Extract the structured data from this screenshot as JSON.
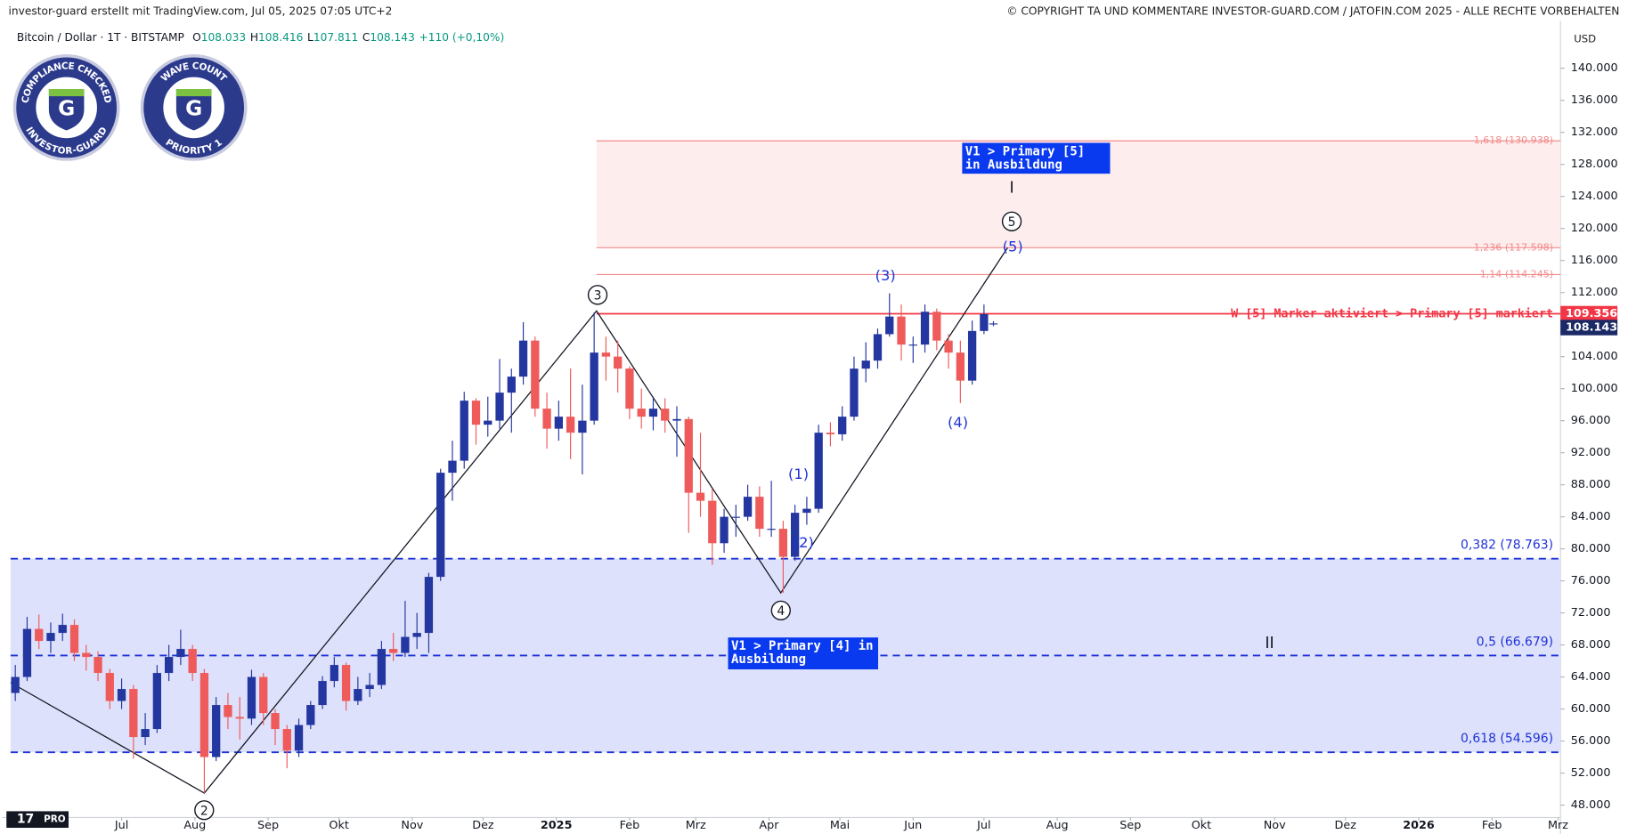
{
  "header": {
    "left": "investor-guard erstellt mit TradingView.com, Jul 05, 2025 07:05 UTC+2",
    "right": "© COPYRIGHT TA UND KOMMENTARE INVESTOR-GUARD.COM / JATOFIN.COM 2025 - ALLE RECHTE VORBEHALTEN"
  },
  "badges": [
    {
      "top": "COMPLIANCE CHECKED",
      "bottom": "INVESTOR-GUARD"
    },
    {
      "top": "WAVE COUNT",
      "bottom": "PRIORITY 1"
    }
  ],
  "logo": "PRO",
  "chart_data": {
    "type": "candlestick",
    "symbol": "Bitcoin / Dollar · 1T · BITSTAMP",
    "ohlc_header": [
      {
        "key": "O",
        "label": "108.033"
      },
      {
        "key": "H",
        "label": "108.416"
      },
      {
        "key": "L",
        "label": "107.811"
      },
      {
        "key": "C",
        "label": "108.143"
      }
    ],
    "change": "+110 (+0,10%)",
    "currency": "USD",
    "x": [
      -45,
      -40,
      -35,
      -30,
      -25,
      -20,
      -15,
      -10,
      -5,
      0,
      5,
      10,
      15,
      20,
      25,
      30,
      35,
      40,
      45,
      50,
      55,
      60,
      65,
      70,
      75,
      80,
      85,
      90,
      95,
      100,
      105,
      110,
      115,
      120,
      125,
      130,
      135,
      140,
      145,
      150,
      155,
      160,
      165,
      170,
      175,
      180,
      185,
      190,
      195,
      200,
      205,
      210,
      215,
      220,
      225,
      230,
      235,
      240,
      245,
      250,
      255,
      260,
      265,
      270,
      275,
      280,
      285,
      290,
      295,
      300,
      305,
      310,
      315,
      320,
      325,
      330,
      335,
      340,
      345,
      350,
      355,
      360,
      365,
      369
    ],
    "open": [
      62000,
      64000,
      70000,
      68500,
      69500,
      70500,
      67000,
      66500,
      64500,
      61000,
      62500,
      56500,
      57500,
      64500,
      66500,
      67500,
      64500,
      54000,
      60500,
      59000,
      58800,
      64000,
      59500,
      57500,
      54800,
      58000,
      60500,
      63500,
      65500,
      61000,
      62500,
      63000,
      67500,
      67000,
      69000,
      69500,
      76500,
      89500,
      91000,
      98500,
      95500,
      96000,
      99500,
      101500,
      106000,
      97500,
      95000,
      96500,
      94500,
      96000,
      104500,
      104000,
      102500,
      97500,
      96500,
      97500,
      96000,
      96200,
      87000,
      86000,
      80700,
      84000,
      84000,
      86500,
      82500,
      82500,
      79000,
      84500,
      85000,
      94500,
      94300,
      96500,
      102500,
      103500,
      106800,
      109000,
      105500,
      105500,
      109600,
      106000,
      104500,
      101000,
      107200,
      108033
    ],
    "high": [
      65500,
      71500,
      71800,
      70800,
      71900,
      71200,
      68000,
      67200,
      65000,
      63800,
      63000,
      59500,
      65500,
      68000,
      69900,
      68000,
      65000,
      61500,
      62000,
      61500,
      64900,
      64500,
      60000,
      58000,
      58800,
      61000,
      64100,
      66500,
      65800,
      64000,
      64500,
      68500,
      69500,
      73500,
      72000,
      77000,
      90000,
      93500,
      99600,
      98800,
      99000,
      103700,
      102500,
      108300,
      106500,
      99500,
      98500,
      102500,
      100500,
      109500,
      106500,
      106000,
      102800,
      100000,
      99000,
      98800,
      97800,
      96500,
      94500,
      87500,
      85000,
      85500,
      88000,
      87800,
      88500,
      83500,
      85500,
      86500,
      95500,
      95800,
      97800,
      104000,
      105800,
      107500,
      111900,
      110500,
      106500,
      110500,
      110000,
      106800,
      106000,
      108500,
      110500,
      108416
    ],
    "low": [
      61000,
      63500,
      67500,
      67000,
      68500,
      66000,
      64800,
      63500,
      60000,
      60000,
      53800,
      55500,
      57000,
      63500,
      65500,
      63500,
      49500,
      53500,
      57500,
      56200,
      58000,
      58000,
      55500,
      52600,
      54000,
      57500,
      60000,
      62700,
      59800,
      60500,
      61500,
      62500,
      66000,
      66500,
      67500,
      67000,
      76000,
      86000,
      90000,
      93000,
      94000,
      95000,
      94500,
      100500,
      96500,
      92500,
      93500,
      91200,
      89300,
      95500,
      101000,
      99500,
      96200,
      95000,
      94800,
      94500,
      91500,
      82000,
      84000,
      78000,
      79500,
      81500,
      83500,
      81500,
      81500,
      74500,
      78500,
      83000,
      84500,
      92800,
      93500,
      96000,
      100800,
      102500,
      106500,
      103500,
      103200,
      104500,
      104800,
      102500,
      98200,
      100500,
      106800,
      107811
    ],
    "close": [
      64000,
      70000,
      68500,
      69500,
      70500,
      67000,
      66500,
      64500,
      61000,
      62500,
      56500,
      57500,
      64500,
      66500,
      67500,
      64500,
      54000,
      60500,
      59000,
      58800,
      64000,
      59500,
      57500,
      54800,
      58000,
      60500,
      63500,
      65500,
      61000,
      62500,
      63000,
      67500,
      67000,
      69000,
      69500,
      76500,
      89500,
      91000,
      98500,
      95500,
      96000,
      99500,
      101500,
      106000,
      97500,
      95000,
      96500,
      94500,
      96000,
      104500,
      104000,
      102500,
      97500,
      96500,
      97500,
      96000,
      96200,
      87000,
      86000,
      80700,
      84000,
      84000,
      86500,
      82500,
      82500,
      79000,
      84500,
      85000,
      94500,
      94300,
      96500,
      102500,
      103500,
      106800,
      109000,
      105500,
      105500,
      109600,
      106000,
      104500,
      101000,
      107200,
      109300,
      108143
    ],
    "up_color": "#2436a0",
    "down_color": "#ef5a5a",
    "last_label": "108.143",
    "last_color": "#1b2a66",
    "xlim": [
      -47,
      609
    ],
    "xticks": [
      {
        "value": 0,
        "label": "Jul"
      },
      {
        "value": 31,
        "label": "Aug"
      },
      {
        "value": 62,
        "label": "Sep"
      },
      {
        "value": 92,
        "label": "Okt"
      },
      {
        "value": 123,
        "label": "Nov"
      },
      {
        "value": 153,
        "label": "Dez"
      },
      {
        "value": 184,
        "label": "2025"
      },
      {
        "value": 215,
        "label": "Feb"
      },
      {
        "value": 243,
        "label": "Mrz"
      },
      {
        "value": 274,
        "label": "Apr"
      },
      {
        "value": 304,
        "label": "Mai"
      },
      {
        "value": 335,
        "label": "Jun"
      },
      {
        "value": 365,
        "label": "Jul"
      },
      {
        "value": 396,
        "label": "Aug"
      },
      {
        "value": 427,
        "label": "Sep"
      },
      {
        "value": 457,
        "label": "Okt"
      },
      {
        "value": 488,
        "label": "Nov"
      },
      {
        "value": 518,
        "label": "Dez"
      },
      {
        "value": 549,
        "label": "2026"
      },
      {
        "value": 580,
        "label": "Feb"
      },
      {
        "value": 608,
        "label": "Mrz"
      }
    ],
    "ylim": [
      46460,
      145940
    ],
    "yticks": [
      {
        "value": 48000,
        "label": "48.000"
      },
      {
        "value": 52000,
        "label": "52.000"
      },
      {
        "value": 56000,
        "label": "56.000"
      },
      {
        "value": 60000,
        "label": "60.000"
      },
      {
        "value": 64000,
        "label": "64.000"
      },
      {
        "value": 68000,
        "label": "68.000"
      },
      {
        "value": 72000,
        "label": "72.000"
      },
      {
        "value": 76000,
        "label": "76.000"
      },
      {
        "value": 80000,
        "label": "80.000"
      },
      {
        "value": 84000,
        "label": "84.000"
      },
      {
        "value": 88000,
        "label": "88.000"
      },
      {
        "value": 92000,
        "label": "92.000"
      },
      {
        "value": 96000,
        "label": "96.000"
      },
      {
        "value": 100000,
        "label": "100.000"
      },
      {
        "value": 104000,
        "label": "104.000"
      },
      {
        "value": 108000,
        "label": "108.000"
      },
      {
        "value": 112000,
        "label": "112.000"
      },
      {
        "value": 116000,
        "label": "116.000"
      },
      {
        "value": 120000,
        "label": "120.000"
      },
      {
        "value": 124000,
        "label": "124.000"
      },
      {
        "value": 128000,
        "label": "128.000"
      },
      {
        "value": 132000,
        "label": "132.000"
      },
      {
        "value": 136000,
        "label": "136.000"
      },
      {
        "value": 140000,
        "label": "140.000"
      }
    ],
    "fib_levels": [
      {
        "value": 130938,
        "label": "1,618 (130.938)",
        "color": "#f28b8b"
      },
      {
        "value": 117598,
        "label": "1,236 (117.598)",
        "color": "#f28b8b"
      },
      {
        "value": 114245,
        "label": "1,14 (114.245)",
        "color": "#f28b8b"
      },
      {
        "value": 78763,
        "label": "0,382 (78.763)",
        "color": "#1f33d6"
      },
      {
        "value": 66679,
        "label": "0,5 (66.679)",
        "color": "#1f33d6"
      },
      {
        "value": 54596,
        "label": "0,618 (54.596)",
        "color": "#1f33d6"
      }
    ],
    "red_zone_start": 201,
    "red_zone_color": "#fdeded",
    "blue_zone_color": "#dde1fb",
    "marker_line": {
      "value": 109356,
      "label": "109.356",
      "text": "W [5] Marker aktiviert > Primary [5] markiert",
      "color": "#f23645"
    },
    "wave_path": {
      "x": [
        -47,
        35,
        201,
        279,
        375
      ],
      "y": [
        63300,
        49500,
        109700,
        74500,
        117600
      ]
    },
    "circled_labels": [
      "2",
      "3",
      "4",
      "5"
    ],
    "wave_labels": [
      "(1)",
      "(2)",
      "(3)",
      "(4)",
      "(5)"
    ],
    "degree_labels": [
      "I",
      "II"
    ],
    "boxes": [
      "V1 > Primary [5] in Ausbildung",
      "V1 > Primary [4] in Ausbildung"
    ]
  }
}
